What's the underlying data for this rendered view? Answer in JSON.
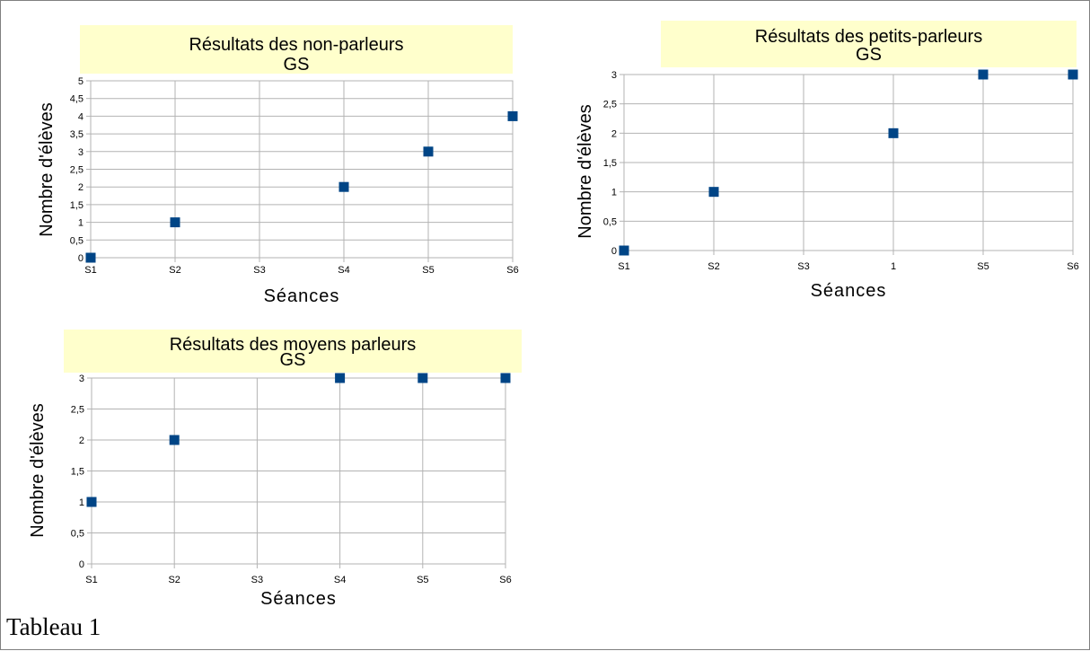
{
  "caption": "Tableau 1",
  "colors": {
    "marker": "#004586",
    "title_bg": "#ffffcc",
    "grid": "#b3b3b3",
    "axis": "#b3b3b3",
    "text": "#000000"
  },
  "chart_data": [
    {
      "type": "scatter",
      "title": [
        "Résultats des non-parleurs",
        "GS"
      ],
      "xlabel": "Séances",
      "ylabel": "Nombre d'élèves",
      "categories": [
        "S1",
        "S2",
        "S3",
        "S4",
        "S5",
        "S6"
      ],
      "ylim": [
        0,
        5
      ],
      "yticks": [
        "0",
        "0,5",
        "1",
        "1,5",
        "2",
        "2,5",
        "3",
        "3,5",
        "4",
        "4,5",
        "5"
      ],
      "grid": true,
      "marker": "square",
      "series": [
        {
          "points": [
            {
              "x": "S1",
              "y": 0
            },
            {
              "x": "S2",
              "y": 1
            },
            {
              "x": "S4",
              "y": 2
            },
            {
              "x": "S5",
              "y": 3
            },
            {
              "x": "S6",
              "y": 4
            }
          ]
        }
      ]
    },
    {
      "type": "scatter",
      "title": [
        "Résultats des petits-parleurs",
        "GS"
      ],
      "xlabel": "Séances",
      "ylabel": "Nombre d'élèves",
      "categories": [
        "S1",
        "S2",
        "S3",
        "1",
        "S5",
        "S6"
      ],
      "ylim": [
        0,
        3
      ],
      "yticks": [
        "0",
        "0,5",
        "1",
        "1,5",
        "2",
        "2,5",
        "3"
      ],
      "grid": true,
      "marker": "square",
      "series": [
        {
          "points": [
            {
              "x": "S1",
              "y": 0
            },
            {
              "x": "S2",
              "y": 1
            },
            {
              "x": "1",
              "y": 2
            },
            {
              "x": "S5",
              "y": 3
            },
            {
              "x": "S6",
              "y": 3
            }
          ]
        }
      ]
    },
    {
      "type": "scatter",
      "title": [
        "Résultats des moyens parleurs",
        "GS"
      ],
      "xlabel": "Séances",
      "ylabel": "Nombre d'élèves",
      "categories": [
        "S1",
        "S2",
        "S3",
        "S4",
        "S5",
        "S6"
      ],
      "ylim": [
        0,
        3
      ],
      "yticks": [
        "0",
        "0,5",
        "1",
        "1,5",
        "2",
        "2,5",
        "3"
      ],
      "grid": true,
      "marker": "square",
      "series": [
        {
          "points": [
            {
              "x": "S1",
              "y": 1
            },
            {
              "x": "S2",
              "y": 2
            },
            {
              "x": "S4",
              "y": 3
            },
            {
              "x": "S5",
              "y": 3
            },
            {
              "x": "S6",
              "y": 3
            }
          ]
        }
      ]
    }
  ]
}
